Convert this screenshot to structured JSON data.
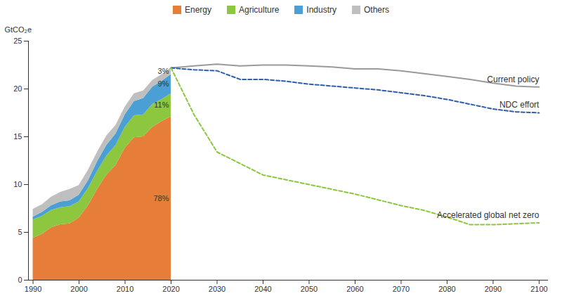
{
  "chart_data": {
    "type": "area",
    "stacked": true,
    "y_label": "GtCO₂e",
    "legend": "top",
    "grid": false,
    "x": [
      1990,
      1992,
      1994,
      1996,
      1998,
      2000,
      2002,
      2004,
      2006,
      2008,
      2010,
      2012,
      2014,
      2016,
      2018,
      2020,
      2025,
      2030,
      2035,
      2040,
      2045,
      2050,
      2055,
      2060,
      2065,
      2070,
      2075,
      2080,
      2085,
      2090,
      2095,
      2100
    ],
    "xlim": [
      1989,
      2102
    ],
    "xticks": [
      1990,
      2000,
      2010,
      2020,
      2030,
      2040,
      2050,
      2060,
      2070,
      2080,
      2090,
      2100
    ],
    "ylim": [
      0,
      25
    ],
    "yticks": [
      0,
      5,
      10,
      15,
      20,
      25
    ],
    "series": [
      {
        "name": "Energy",
        "type": "area",
        "color": "#e67e3a",
        "label": "78%",
        "values": [
          4.4,
          4.8,
          5.5,
          5.8,
          5.9,
          6.5,
          7.8,
          9.5,
          11.0,
          12.0,
          13.8,
          14.9,
          15.0,
          16.0,
          16.6,
          17.1,
          null,
          null,
          null,
          null,
          null,
          null,
          null,
          null,
          null,
          null,
          null,
          null,
          null,
          null,
          null,
          null
        ]
      },
      {
        "name": "Agriculture",
        "type": "area",
        "color": "#8dc63f",
        "label": "11%",
        "values": [
          1.9,
          1.9,
          1.8,
          1.8,
          1.8,
          1.7,
          1.8,
          1.9,
          2.0,
          2.1,
          2.2,
          2.3,
          2.3,
          2.4,
          2.3,
          2.4,
          null,
          null,
          null,
          null,
          null,
          null,
          null,
          null,
          null,
          null,
          null,
          null,
          null,
          null,
          null,
          null
        ]
      },
      {
        "name": "Industry",
        "type": "area",
        "color": "#4a9fd5",
        "label": "9%",
        "values": [
          0.3,
          0.4,
          0.5,
          0.6,
          0.6,
          0.7,
          0.8,
          1.0,
          1.1,
          1.2,
          1.3,
          1.5,
          1.7,
          1.8,
          1.9,
          2.0,
          null,
          null,
          null,
          null,
          null,
          null,
          null,
          null,
          null,
          null,
          null,
          null,
          null,
          null,
          null,
          null
        ]
      },
      {
        "name": "Others",
        "type": "area",
        "color": "#bfbfbf",
        "label": "3%",
        "values": [
          0.8,
          0.8,
          0.9,
          1.0,
          1.2,
          1.0,
          1.1,
          1.0,
          1.0,
          0.9,
          0.8,
          0.8,
          0.8,
          0.7,
          0.7,
          0.7,
          null,
          null,
          null,
          null,
          null,
          null,
          null,
          null,
          null,
          null,
          null,
          null,
          null,
          null,
          null,
          null
        ]
      },
      {
        "name": "Current policy",
        "type": "line",
        "color": "#9a9a9a",
        "line_style": "solid",
        "values": [
          null,
          null,
          null,
          null,
          null,
          null,
          null,
          null,
          null,
          null,
          null,
          null,
          null,
          null,
          null,
          22.2,
          22.4,
          22.6,
          22.4,
          22.5,
          22.5,
          22.4,
          22.3,
          22.1,
          22.1,
          21.9,
          21.6,
          21.3,
          21.0,
          20.6,
          20.3,
          20.2
        ]
      },
      {
        "name": "NDC effort",
        "type": "line",
        "color": "#2f5fa7",
        "line_style": "dashed",
        "values": [
          null,
          null,
          null,
          null,
          null,
          null,
          null,
          null,
          null,
          null,
          null,
          null,
          null,
          null,
          null,
          22.2,
          22.0,
          21.9,
          21.0,
          21.0,
          20.8,
          20.5,
          20.3,
          20.1,
          19.9,
          19.6,
          19.3,
          18.9,
          18.4,
          17.9,
          17.6,
          17.5
        ]
      },
      {
        "name": "Accelerated global net zero",
        "type": "line",
        "color": "#8dc63f",
        "line_style": "dashed",
        "values": [
          null,
          null,
          null,
          null,
          null,
          null,
          null,
          null,
          null,
          null,
          null,
          null,
          null,
          null,
          null,
          22.2,
          17.3,
          13.4,
          12.2,
          11.0,
          10.5,
          10.0,
          9.5,
          9.0,
          8.4,
          7.8,
          7.3,
          6.6,
          5.8,
          5.8,
          5.9,
          6.0
        ]
      }
    ]
  }
}
